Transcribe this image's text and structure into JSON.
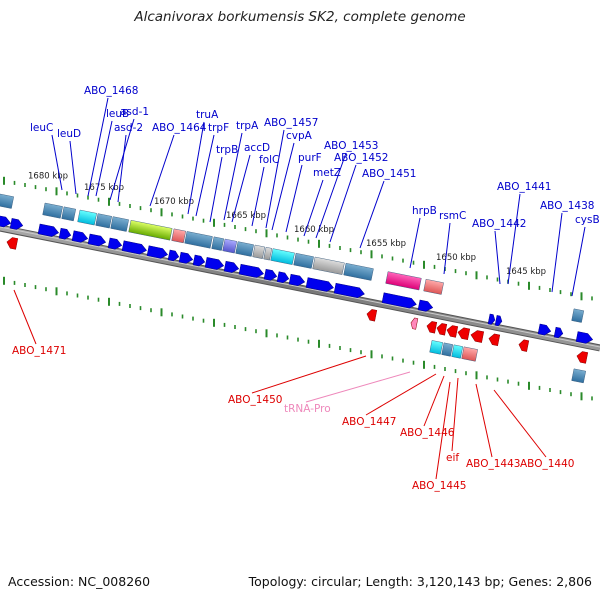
{
  "title": "Alcanivorax borkumensis SK2, complete genome",
  "footer": {
    "accession": "Accession: NC_008260",
    "summary": "Topology: circular; Length: 3,120,143 bp; Genes: 2,806"
  },
  "ruler": [
    "1680 kbp",
    "1675 kbp",
    "1670 kbp",
    "1665 kbp",
    "1660 kbp",
    "1655 kbp",
    "1650 kbp",
    "1645 kbp"
  ],
  "forward_labels": [
    "ABO_1468",
    "leuC",
    "leuD",
    "leuB",
    "asd-1",
    "asd-2",
    "ABO_1464",
    "truA",
    "trpF",
    "trpA",
    "trpB",
    "ABO_1457",
    "accD",
    "cvpA",
    "folC",
    "purF",
    "ABO_1453",
    "ABO_1452",
    "metZ",
    "ABO_1451",
    "hrpB",
    "rsmC",
    "ABO_1441",
    "ABO_1442",
    "ABO_1438",
    "cysB"
  ],
  "reverse_labels": [
    "ABO_1471",
    "ABO_1450",
    "tRNA-Pro",
    "ABO_1447",
    "ABO_1446",
    "eif",
    "ABO_1445",
    "ABO_1443",
    "ABO_1440"
  ],
  "colors": {
    "forward_label": "#0000cc",
    "reverse_label": "#dd0000",
    "trna_label": "#ee88bb",
    "cds_forward": "#0000ee",
    "cds_reverse": "#ee0000",
    "backbone": "#888888",
    "tick": "#2a8a2a"
  }
}
